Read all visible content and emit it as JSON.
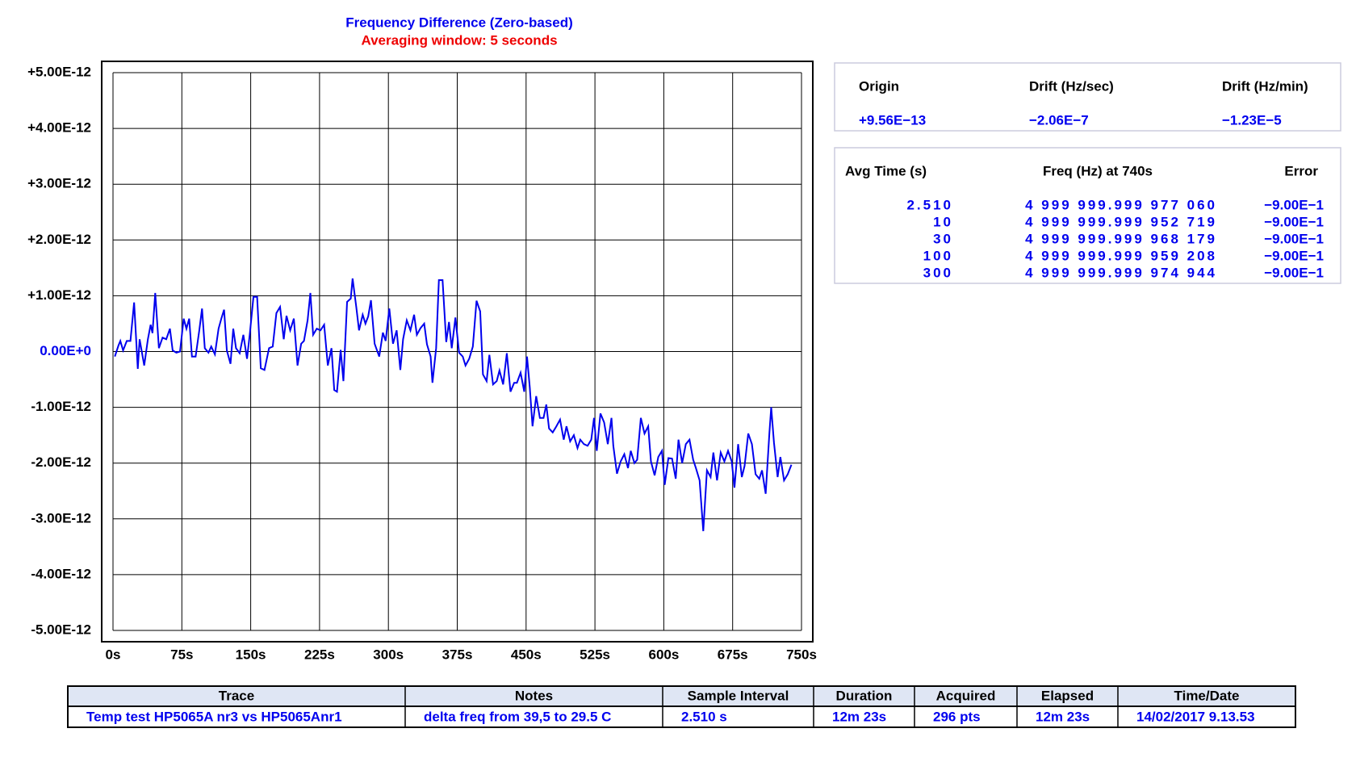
{
  "chart_data": {
    "type": "line",
    "title": "Frequency Difference (Zero-based)",
    "subtitle": "Averaging window: 5 seconds",
    "title_color": "#0000ee",
    "subtitle_color": "#ee0000",
    "color": "#0000ee",
    "zero_label_color": "#0000ee",
    "grid": true,
    "xlim": [
      0,
      750
    ],
    "xticks": [
      {
        "value": 0,
        "label": "0s"
      },
      {
        "value": 75,
        "label": "75s"
      },
      {
        "value": 150,
        "label": "150s"
      },
      {
        "value": 225,
        "label": "225s"
      },
      {
        "value": 300,
        "label": "300s"
      },
      {
        "value": 375,
        "label": "375s"
      },
      {
        "value": 450,
        "label": "450s"
      },
      {
        "value": 525,
        "label": "525s"
      },
      {
        "value": 600,
        "label": "600s"
      },
      {
        "value": 675,
        "label": "675s"
      },
      {
        "value": 750,
        "label": "750s"
      }
    ],
    "ylim": [
      -5e-12,
      5e-12
    ],
    "yticks": [
      {
        "value": 5e-12,
        "label": "+5.00E-12"
      },
      {
        "value": 4e-12,
        "label": "+4.00E-12"
      },
      {
        "value": 3e-12,
        "label": "+3.00E-12"
      },
      {
        "value": 2e-12,
        "label": "+2.00E-12"
      },
      {
        "value": 1e-12,
        "label": "+1.00E-12"
      },
      {
        "value": 0,
        "label": "0.00E+0"
      },
      {
        "value": -1e-12,
        "label": "-1.00E-12"
      },
      {
        "value": -2e-12,
        "label": "-2.00E-12"
      },
      {
        "value": -3e-12,
        "label": "-3.00E-12"
      },
      {
        "value": -4e-12,
        "label": "-4.00E-12"
      },
      {
        "value": -5e-12,
        "label": "-5.00E-12"
      }
    ],
    "x": [
      2,
      6,
      8,
      11,
      15,
      19,
      23,
      27,
      29,
      34,
      38,
      41,
      43,
      46,
      50,
      54,
      58,
      62,
      65,
      69,
      73,
      77,
      80,
      83,
      86,
      90,
      94,
      97,
      100,
      104,
      107,
      111,
      115,
      118,
      121,
      124,
      128,
      131,
      134,
      138,
      142,
      146,
      149,
      153,
      157,
      161,
      165,
      170,
      174,
      178,
      182,
      186,
      189,
      193,
      197,
      201,
      205,
      208,
      212,
      215,
      218,
      222,
      226,
      230,
      234,
      238,
      241,
      244,
      248,
      251,
      255,
      259,
      261,
      265,
      268,
      272,
      275,
      278,
      281,
      285,
      290,
      294,
      297,
      301,
      305,
      309,
      313,
      316,
      320,
      324,
      328,
      331,
      335,
      339,
      342,
      346,
      348,
      352,
      355,
      359,
      363,
      366,
      369,
      373,
      377,
      381,
      384,
      388,
      392,
      396,
      400,
      403,
      407,
      410,
      414,
      418,
      421,
      425,
      429,
      433,
      437,
      440,
      444,
      448,
      451,
      454,
      457,
      461,
      465,
      469,
      472,
      475,
      479,
      483,
      487,
      491,
      494,
      498,
      502,
      506,
      509,
      513,
      517,
      521,
      524,
      527,
      531,
      535,
      539,
      543,
      545,
      549,
      553,
      557,
      561,
      564,
      568,
      571,
      575,
      579,
      583,
      586,
      590,
      594,
      598,
      601,
      605,
      609,
      613,
      616,
      620,
      624,
      628,
      632,
      635,
      639,
      643,
      647,
      651,
      654,
      658,
      662,
      666,
      670,
      674,
      677,
      681,
      685,
      688,
      692,
      696,
      700,
      704,
      707,
      711,
      715,
      717,
      720,
      724,
      727,
      731,
      735,
      739
    ],
    "values": [
      -9e-14,
      1.1e-13,
      1.9e-13,
      2e-14,
      1.9e-13,
      1.9e-13,
      8.8e-13,
      -3.1e-13,
      2.2e-13,
      -2.5e-13,
      2.2e-13,
      4.8e-13,
      3.3e-13,
      1.05e-12,
      6e-14,
      2.5e-13,
      2.2e-13,
      4.1e-13,
      2e-14,
      -2e-14,
      0.0,
      5.9e-13,
      4.1e-13,
      5.9e-13,
      -9e-14,
      -9e-14,
      3.8e-13,
      7.7e-13,
      6e-14,
      -2e-14,
      9e-14,
      -5e-14,
      4.1e-13,
      5.9e-13,
      7.5e-13,
      2e-14,
      -2.2e-13,
      4.1e-13,
      6e-14,
      -3e-14,
      3e-13,
      -1.3e-13,
      3.1e-13,
      9.8e-13,
      9.8e-13,
      -3e-13,
      -3.3e-13,
      6e-14,
      9e-14,
      6.9e-13,
      8e-13,
      2.2e-13,
      6.4e-13,
      3.8e-13,
      5.9e-13,
      -2.5e-13,
      1.4e-13,
      1.9e-13,
      5.6e-13,
      1.05e-12,
      3e-13,
      4.1e-13,
      3.8e-13,
      4.8e-13,
      -2.5e-13,
      6e-14,
      -6.9e-13,
      -7.2e-13,
      3e-14,
      -5.3e-13,
      8.9e-13,
      9.5e-13,
      1.31e-12,
      8e-13,
      3.8e-13,
      6.6e-13,
      5e-13,
      6.3e-13,
      9.2e-13,
      1.4e-13,
      -9e-14,
      3.4e-13,
      1.9e-13,
      7.7e-13,
      1.4e-13,
      3.8e-13,
      -3.3e-13,
      2.2e-13,
      5.6e-13,
      3.8e-13,
      6.6e-13,
      3e-13,
      4.2e-13,
      5e-13,
      1.3e-13,
      -9e-14,
      -5.6e-13,
      6e-14,
      1.28e-12,
      1.28e-12,
      1.7e-13,
      5.3e-13,
      6e-14,
      6.1e-13,
      -2e-14,
      -9e-14,
      -2.5e-13,
      -1.3e-13,
      9e-14,
      9.1e-13,
      7.2e-13,
      -4.1e-13,
      -5.3e-13,
      -6e-14,
      -5.9e-13,
      -5.3e-13,
      -3.4e-13,
      -5.9e-13,
      -3e-14,
      -7.2e-13,
      -5.6e-13,
      -5.6e-13,
      -3.8e-13,
      -7.2e-13,
      -9e-14,
      -6.4e-13,
      -1.34e-12,
      -8e-13,
      -1.19e-12,
      -1.19e-12,
      -9.5e-13,
      -1.38e-12,
      -1.45e-12,
      -1.34e-12,
      -1.22e-12,
      -1.58e-12,
      -1.34e-12,
      -1.61e-12,
      -1.5e-12,
      -1.73e-12,
      -1.58e-12,
      -1.66e-12,
      -1.69e-12,
      -1.58e-12,
      -1.19e-12,
      -1.78e-12,
      -1.11e-12,
      -1.27e-12,
      -1.66e-12,
      -1.19e-12,
      -1.69e-12,
      -2.19e-12,
      -1.97e-12,
      -1.84e-12,
      -2.09e-12,
      -1.78e-12,
      -2e-12,
      -1.94e-12,
      -1.19e-12,
      -1.47e-12,
      -1.34e-12,
      -1.97e-12,
      -2.22e-12,
      -1.89e-12,
      -1.78e-12,
      -2.39e-12,
      -1.91e-12,
      -1.92e-12,
      -2.28e-12,
      -1.58e-12,
      -2e-12,
      -1.66e-12,
      -1.58e-12,
      -1.94e-12,
      -2.09e-12,
      -2.31e-12,
      -3.22e-12,
      -2.13e-12,
      -2.25e-12,
      -1.81e-12,
      -2.31e-12,
      -1.81e-12,
      -1.97e-12,
      -1.78e-12,
      -1.97e-12,
      -2.44e-12,
      -1.66e-12,
      -2.25e-12,
      -2.05e-12,
      -1.47e-12,
      -1.66e-12,
      -2.2e-12,
      -2.28e-12,
      -2.13e-12,
      -2.55e-12,
      -1.47e-12,
      -1e-12,
      -1.63e-12,
      -2.25e-12,
      -1.89e-12,
      -2.31e-12,
      -2.2e-12,
      -2.03e-12
    ]
  },
  "drift_panel": {
    "headers": [
      "Origin",
      "Drift (Hz/sec)",
      "Drift (Hz/min)"
    ],
    "values": [
      "+9.56E−13",
      "−2.06E−7",
      "−1.23E−5"
    ]
  },
  "avg_panel": {
    "headers": [
      "Avg Time (s)",
      "Freq (Hz) at 740s",
      "Error"
    ],
    "rows": [
      [
        "2.510",
        "4 999 999.999 977 060",
        "−9.00E−1"
      ],
      [
        "10",
        "4 999 999.999 952 719",
        "−9.00E−1"
      ],
      [
        "30",
        "4 999 999.999 968 179",
        "−9.00E−1"
      ],
      [
        "100",
        "4 999 999.999 959 208",
        "−9.00E−1"
      ],
      [
        "300",
        "4 999 999.999 974 944",
        "−9.00E−1"
      ]
    ]
  },
  "info_table": {
    "headers": [
      "Trace",
      "Notes",
      "Sample Interval",
      "Duration",
      "Acquired",
      "Elapsed",
      "Time/Date"
    ],
    "row": [
      "Temp test HP5065A nr3 vs HP5065Anr1",
      "delta freq from 39,5 to 29.5 C",
      "2.510 s",
      "12m 23s",
      "296 pts",
      "12m 23s",
      "14/02/2017 9.13.53"
    ]
  }
}
